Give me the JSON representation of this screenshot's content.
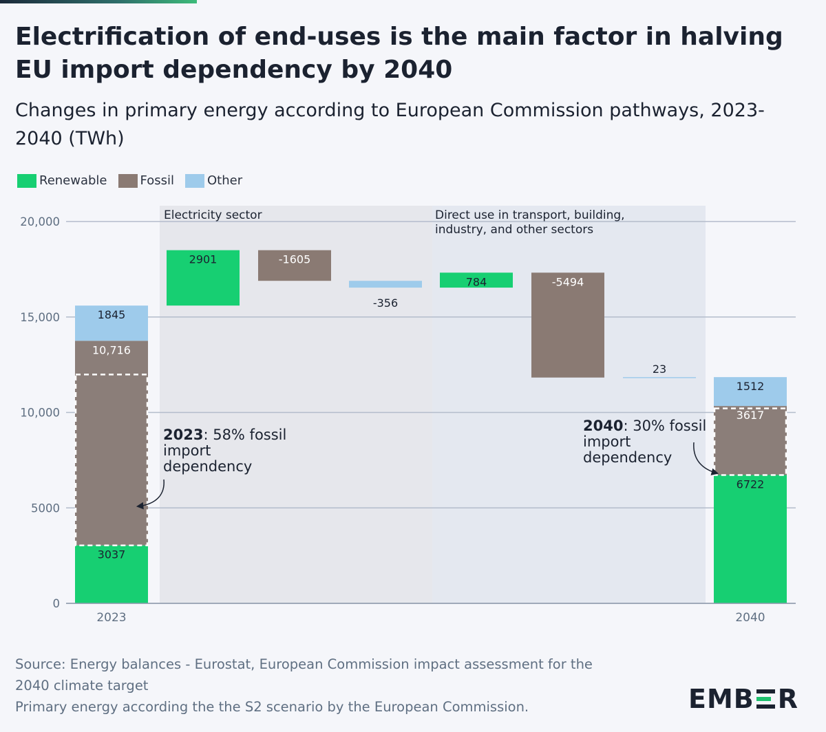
{
  "header": {
    "title": "Electrification of end-uses is the main factor in halving EU import dependency by 2040",
    "subtitle": "Changes in primary energy according to European Commission pathways, 2023-2040 (TWh)"
  },
  "legend": [
    {
      "label": "Renewable",
      "color": "#17cf72"
    },
    {
      "label": "Fossil",
      "color": "#8a7a73"
    },
    {
      "label": "Other",
      "color": "#9ecbeb"
    }
  ],
  "chart_data": {
    "type": "waterfall",
    "unit": "TWh",
    "y_axis": {
      "min": 0,
      "max": 20000,
      "ticks": [
        {
          "value": 0,
          "label": "0"
        },
        {
          "value": 5000,
          "label": "5000"
        },
        {
          "value": 10000,
          "label": "10,000"
        },
        {
          "value": 15000,
          "label": "15,000"
        },
        {
          "value": 20000,
          "label": "20,000"
        }
      ]
    },
    "regions": [
      {
        "label": "Electricity sector",
        "from_step": 1,
        "to_step": 3
      },
      {
        "label": "Direct use in transport, building, industry, and other sectors",
        "from_step": 4,
        "to_step": 6
      }
    ],
    "steps": [
      {
        "x_label": "2023",
        "type": "total",
        "segments": [
          {
            "category": "Renewable",
            "value": 3037,
            "label": "3037"
          },
          {
            "category": "Fossil",
            "value": 10716,
            "label": "10,716"
          },
          {
            "category": "Other",
            "value": 1845,
            "label": "1845"
          }
        ]
      },
      {
        "x_label": "",
        "type": "change",
        "category": "Renewable",
        "value": 2901,
        "label": "2901"
      },
      {
        "x_label": "",
        "type": "change",
        "category": "Fossil",
        "value": -1605,
        "label": "-1605"
      },
      {
        "x_label": "",
        "type": "change",
        "category": "Other",
        "value": -356,
        "label": "-356"
      },
      {
        "x_label": "",
        "type": "change",
        "category": "Renewable",
        "value": 784,
        "label": "784"
      },
      {
        "x_label": "",
        "type": "change",
        "category": "Fossil",
        "value": -5494,
        "label": "-5494"
      },
      {
        "x_label": "",
        "type": "change",
        "category": "Other",
        "value": 23,
        "label": "23"
      },
      {
        "x_label": "2040",
        "type": "total",
        "segments": [
          {
            "category": "Renewable",
            "value": 6722,
            "label": "6722"
          },
          {
            "category": "Fossil",
            "value": 3617,
            "label": "3617"
          },
          {
            "category": "Other",
            "value": 1512,
            "label": "1512"
          }
        ]
      }
    ],
    "import_dependency": [
      {
        "year_label": "2023",
        "text": ": 58% fossil import dependency",
        "share": 0.58,
        "range": [
          3037,
          11986
        ]
      },
      {
        "year_label": "2040",
        "text": ": 30% fossil import dependency",
        "share": 0.3,
        "range": [
          6722,
          10210
        ]
      }
    ]
  },
  "footer": {
    "source_line1": "Source: Energy balances - Eurostat, European Commission impact assessment for the",
    "source_line2": "2040 climate target",
    "note": "Primary energy according the the S2 scenario by the European Commission."
  },
  "brand": {
    "name": "EMBER",
    "accent": "#1ec16e"
  }
}
